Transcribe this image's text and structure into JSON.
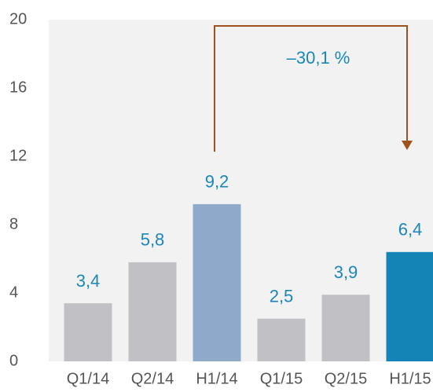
{
  "chart_data": {
    "type": "bar",
    "categories": [
      "Q1/14",
      "Q2/14",
      "H1/14",
      "Q1/15",
      "Q2/15",
      "H1/15"
    ],
    "values": [
      3.4,
      5.8,
      9.2,
      2.5,
      3.9,
      6.4
    ],
    "value_labels": [
      "3,4",
      "5,8",
      "9,2",
      "2,5",
      "3,9",
      "6,4"
    ],
    "colors": [
      "#c1c1c5",
      "#c1c1c5",
      "#8ea9c9",
      "#c1c1c5",
      "#c1c1c5",
      "#1484b7"
    ],
    "ylim": [
      0,
      20
    ],
    "yticks": [
      0,
      4,
      8,
      12,
      16,
      20
    ],
    "annotation": "–30,1 %"
  }
}
